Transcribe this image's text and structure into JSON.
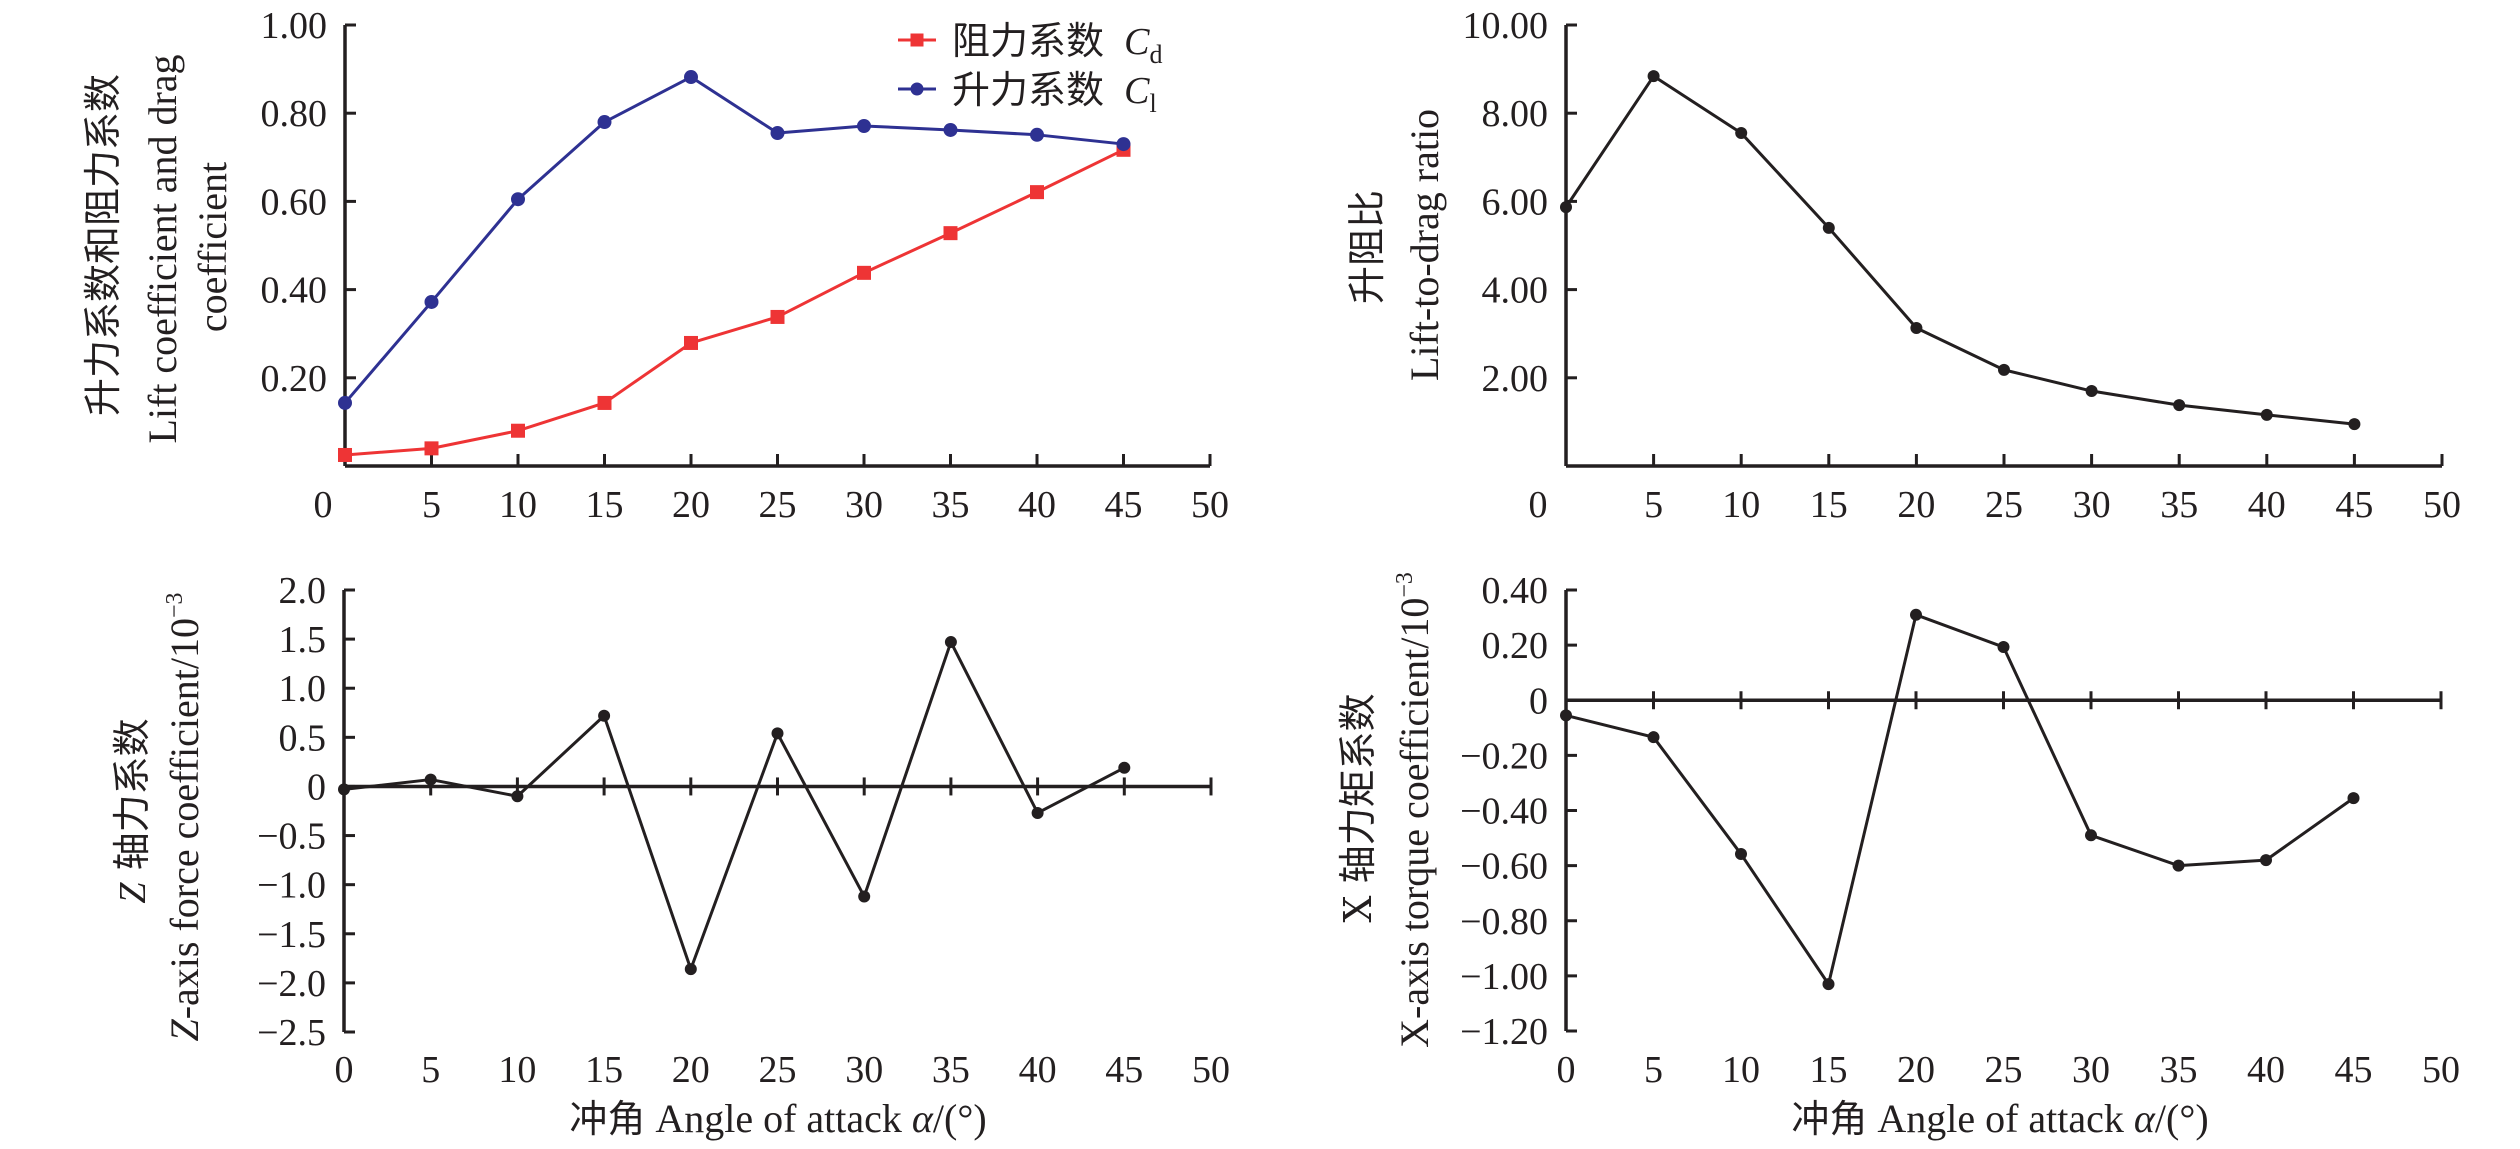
{
  "colors": {
    "axis": "#231f20",
    "drag": "#ee3435",
    "lift": "#2e3192",
    "black_series": "#231f20"
  },
  "chart_data": [
    {
      "id": "lift-drag-coefficients",
      "type": "line",
      "title": "",
      "xlabel": "",
      "ylabel_cn": "升力系数和阻力系数",
      "ylabel_en": [
        "Lift coefficient and drag",
        "coefficient"
      ],
      "x": [
        0,
        5,
        10,
        15,
        20,
        25,
        30,
        35,
        40,
        45
      ],
      "xlim": [
        0,
        50
      ],
      "ylim": [
        0,
        1.0
      ],
      "x_ticks": [
        0,
        5,
        10,
        15,
        20,
        25,
        30,
        35,
        40,
        45,
        50
      ],
      "x_tick_labels": [
        "0",
        "5",
        "10",
        "15",
        "20",
        "25",
        "30",
        "35",
        "40",
        "45",
        "50"
      ],
      "y_ticks": [
        0.2,
        0.4,
        0.6,
        0.8,
        1.0
      ],
      "y_tick_labels": [
        "0.20",
        "0.40",
        "0.60",
        "0.80",
        "1.00"
      ],
      "grid": false,
      "legend_placement": "top-right",
      "series": [
        {
          "name_cn": "阻力系数",
          "symbol": "C",
          "subscript": "d",
          "color": "#ee3435",
          "marker": "square",
          "values": [
            0.025,
            0.04,
            0.08,
            0.143,
            0.279,
            0.338,
            0.438,
            0.528,
            0.621,
            0.717
          ]
        },
        {
          "name_cn": "升力系数",
          "symbol": "C",
          "subscript": "l",
          "color": "#2e3192",
          "marker": "circle",
          "values": [
            0.143,
            0.372,
            0.605,
            0.78,
            0.882,
            0.755,
            0.771,
            0.762,
            0.751,
            0.73
          ]
        }
      ]
    },
    {
      "id": "lift-to-drag-ratio",
      "type": "line",
      "title": "",
      "xlabel": "",
      "ylabel_cn": "升阻比",
      "ylabel_en": [
        "Lift-to-drag ratio"
      ],
      "x": [
        0,
        5,
        10,
        15,
        20,
        25,
        30,
        35,
        40,
        45
      ],
      "xlim": [
        0,
        50
      ],
      "ylim": [
        0,
        10.0
      ],
      "x_ticks": [
        0,
        5,
        10,
        15,
        20,
        25,
        30,
        35,
        40,
        45,
        50
      ],
      "x_tick_labels": [
        "0",
        "5",
        "10",
        "15",
        "20",
        "25",
        "30",
        "35",
        "40",
        "45",
        "50"
      ],
      "y_ticks": [
        2,
        4,
        6,
        8,
        10
      ],
      "y_tick_labels": [
        "2.00",
        "4.00",
        "6.00",
        "8.00",
        "10.00"
      ],
      "grid": false,
      "series": [
        {
          "name": "Lift-to-drag ratio",
          "color": "#231f20",
          "marker": "circle",
          "values": [
            5.87,
            8.84,
            7.55,
            5.4,
            3.13,
            2.18,
            1.7,
            1.38,
            1.16,
            0.95
          ]
        }
      ]
    },
    {
      "id": "z-axis-force-coefficient",
      "type": "line",
      "title": "",
      "xlabel": "冲角 Angle of attack α/(°)",
      "xlabel_cn": "冲角",
      "xlabel_en": "Angle of attack ",
      "xlabel_symbol": "α",
      "xlabel_unit": "/(°)",
      "ylabel_cn_symbol": "Z",
      "ylabel_cn": " 轴力系数",
      "ylabel_en_symbol": "Z",
      "ylabel_en": "-axis force coefficient/10",
      "ylabel_exponent": "−3",
      "x": [
        0,
        5,
        10,
        15,
        20,
        25,
        30,
        35,
        40,
        45
      ],
      "xlim": [
        0,
        50
      ],
      "ylim": [
        -2.5,
        2.0
      ],
      "x_ticks": [
        0,
        5,
        10,
        15,
        20,
        25,
        30,
        35,
        40,
        45,
        50
      ],
      "x_tick_labels": [
        "0",
        "5",
        "10",
        "15",
        "20",
        "25",
        "30",
        "35",
        "40",
        "45",
        "50"
      ],
      "y_ticks": [
        2.0,
        1.5,
        1.0,
        0.5,
        0,
        -0.5,
        -1.0,
        -1.5,
        -2.0,
        -2.5
      ],
      "y_tick_labels": [
        "2.0",
        "1.5",
        "1.0",
        "0.5",
        "0",
        "−0.5",
        "−1.0",
        "−1.5",
        "−2.0",
        "−2.5"
      ],
      "grid": false,
      "series": [
        {
          "name": "Z-axis force coefficient",
          "color": "#231f20",
          "marker": "circle",
          "values": [
            -0.03,
            0.07,
            -0.1,
            0.72,
            -1.86,
            0.54,
            -1.12,
            1.47,
            -0.27,
            0.19
          ]
        }
      ]
    },
    {
      "id": "x-axis-torque-coefficient",
      "type": "line",
      "title": "",
      "xlabel": "冲角 Angle of attack α/(°)",
      "xlabel_cn": "冲角",
      "xlabel_en": "Angle of attack ",
      "xlabel_symbol": "α",
      "xlabel_unit": "/(°)",
      "ylabel_cn": "X 轴力矩系数",
      "ylabel_en": "X-axis torque coefficient/10",
      "ylabel_exponent": "−3",
      "x": [
        0,
        5,
        10,
        15,
        20,
        25,
        30,
        35,
        40,
        45
      ],
      "xlim": [
        0,
        50
      ],
      "ylim": [
        -1.2,
        0.4
      ],
      "x_ticks": [
        0,
        5,
        10,
        15,
        20,
        25,
        30,
        35,
        40,
        45,
        50
      ],
      "x_tick_labels": [
        "0",
        "5",
        "10",
        "15",
        "20",
        "25",
        "30",
        "35",
        "40",
        "45",
        "50"
      ],
      "y_ticks": [
        0.4,
        0.2,
        0,
        -0.2,
        -0.4,
        -0.6,
        -0.8,
        -1.0,
        -1.2
      ],
      "y_tick_labels": [
        "0.40",
        "0.20",
        "0",
        "−0.20",
        "−0.40",
        "−0.60",
        "−0.80",
        "−1.00",
        "−1.20"
      ],
      "grid": false,
      "series": [
        {
          "name": "X-axis torque coefficient",
          "color": "#231f20",
          "marker": "circle",
          "values": [
            -0.055,
            -0.134,
            -0.558,
            -1.03,
            0.31,
            0.193,
            -0.49,
            -0.6,
            -0.58,
            -0.355
          ]
        }
      ]
    }
  ]
}
